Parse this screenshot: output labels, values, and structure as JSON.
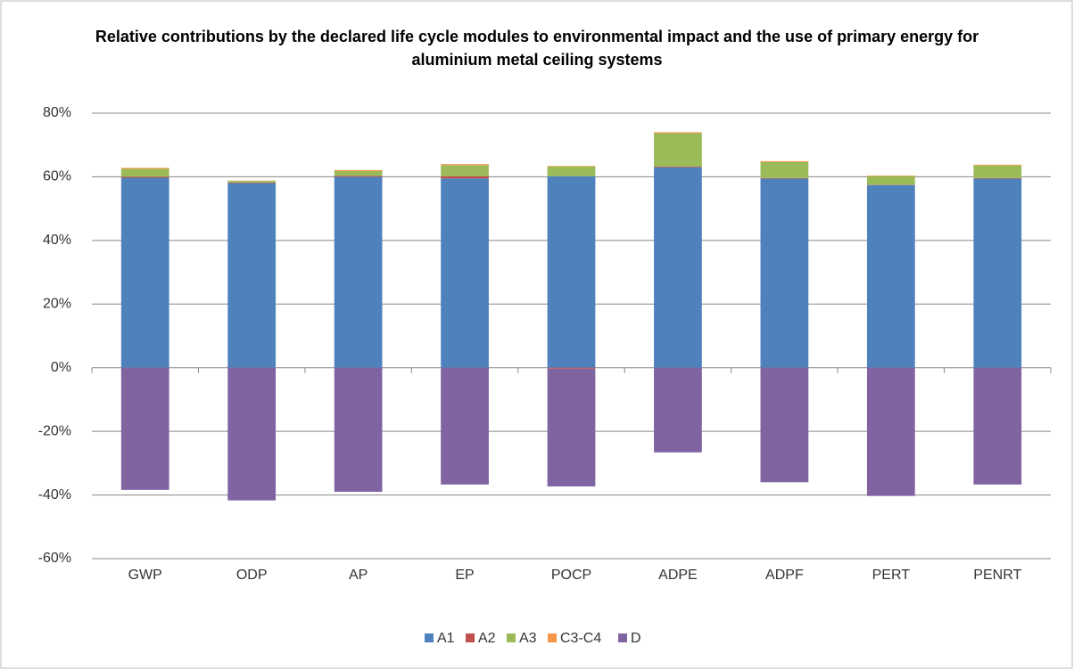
{
  "chart_data": {
    "type": "stacked-bar",
    "title": "Relative contributions by the declared life cycle modules to environmental impact and the use of primary energy for aluminium metal ceiling systems",
    "categories": [
      "GWP",
      "ODP",
      "AP",
      "EP",
      "POCP",
      "ADPE",
      "ADPF",
      "PERT",
      "PENRT"
    ],
    "series": [
      {
        "name": "A1",
        "color": "#4f81bd",
        "values": [
          59.7,
          58,
          60,
          59.5,
          60.2,
          63,
          59.4,
          57.4,
          59.4
        ]
      },
      {
        "name": "A2",
        "color": "#c0504d",
        "values": [
          0.3,
          0.2,
          0.3,
          0.7,
          -0.3,
          0.2,
          0.2,
          0.1,
          0.2
        ]
      },
      {
        "name": "A3",
        "color": "#9bbb59",
        "values": [
          2.5,
          0.5,
          1.5,
          3.5,
          3,
          10.5,
          5,
          2.7,
          4
        ]
      },
      {
        "name": "C3-C4",
        "color": "#f79646",
        "values": [
          0.3,
          0.1,
          0.3,
          0.3,
          0.2,
          0.3,
          0.3,
          0.2,
          0.2
        ]
      },
      {
        "name": "D",
        "color": "#8064a2",
        "values": [
          -38.4,
          -41.7,
          -39,
          -36.7,
          -37,
          -26.6,
          -36,
          -40.3,
          -36.7
        ]
      }
    ],
    "ylim": [
      -60,
      80
    ],
    "yticks": [
      {
        "value": -60,
        "label": "-60%"
      },
      {
        "value": -40,
        "label": "-40%"
      },
      {
        "value": -20,
        "label": "-20%"
      },
      {
        "value": 0,
        "label": "0%"
      },
      {
        "value": 20,
        "label": "20%"
      },
      {
        "value": 40,
        "label": "40%"
      },
      {
        "value": 60,
        "label": "60%"
      },
      {
        "value": 80,
        "label": "80%"
      }
    ],
    "grid": true,
    "legend": "bottom"
  }
}
